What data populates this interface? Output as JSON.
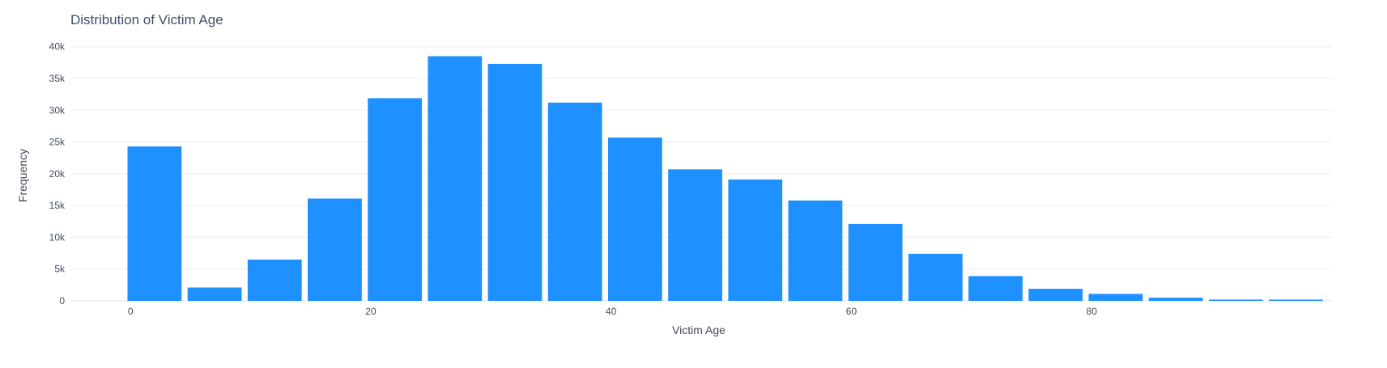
{
  "chart_data": {
    "type": "bar",
    "title": "Distribution of Victim Age",
    "xlabel": "Victim Age",
    "ylabel": "Frequency",
    "bin_width": 5,
    "x": [
      2,
      7,
      12,
      17,
      22,
      27,
      32,
      37,
      42,
      47,
      52,
      57,
      62,
      67,
      72,
      77,
      82,
      87,
      92,
      97
    ],
    "values": [
      24300,
      2100,
      6500,
      16100,
      31900,
      38500,
      37300,
      31200,
      25700,
      20700,
      19100,
      15800,
      12100,
      7400,
      3900,
      1900,
      1100,
      500,
      200,
      200
    ],
    "xlim": [
      -5,
      100
    ],
    "ylim": [
      0,
      42000
    ],
    "x_ticks": [
      0,
      20,
      40,
      60,
      80
    ],
    "x_tick_labels": [
      "0",
      "20",
      "40",
      "60",
      "80"
    ],
    "y_ticks": [
      0,
      5000,
      10000,
      15000,
      20000,
      25000,
      30000,
      35000,
      40000
    ],
    "y_tick_labels": [
      "0",
      "5k",
      "10k",
      "15k",
      "20k",
      "25k",
      "30k",
      "35k",
      "40k"
    ],
    "grid": true,
    "legend": "none",
    "bar_color": "#1e90ff",
    "grid_color": "#eeeeee",
    "text_color": "#444b5a",
    "title_color": "#3f4f6b"
  }
}
